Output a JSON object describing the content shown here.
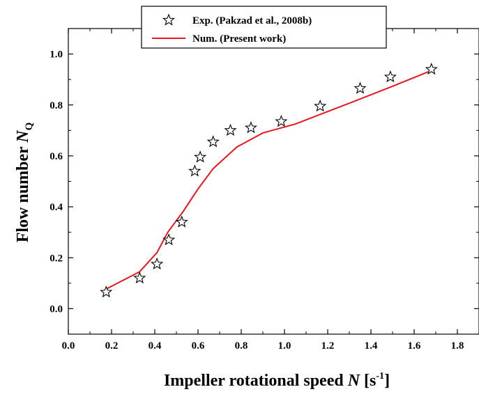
{
  "chart_data": {
    "type": "scatter",
    "xlabel": {
      "prefix": "Impeller rotational speed ",
      "var": "N",
      "unit_open": " [s",
      "unit_sup": "-1",
      "unit_close": "]"
    },
    "ylabel": {
      "prefix": "Flow number ",
      "var": "N",
      "sub": "Q"
    },
    "xlim": [
      0.0,
      1.9
    ],
    "ylim": [
      -0.1,
      1.1
    ],
    "x_ticks": [
      "0.0",
      "0.2",
      "0.4",
      "0.6",
      "0.8",
      "1.0",
      "1.2",
      "1.4",
      "1.6",
      "1.8"
    ],
    "y_ticks": [
      "0.0",
      "0.2",
      "0.4",
      "0.6",
      "0.8",
      "1.0"
    ],
    "x_tick_values": [
      0.0,
      0.2,
      0.4,
      0.6,
      0.8,
      1.0,
      1.2,
      1.4,
      1.6,
      1.8
    ],
    "y_tick_values": [
      0.0,
      0.2,
      0.4,
      0.6,
      0.8,
      1.0
    ],
    "legend_position": "top-center",
    "series": [
      {
        "name": "Exp. (Pakzad et al., 2008b)",
        "kind": "scatter",
        "marker": "star",
        "color": "#000000",
        "x": [
          0.175,
          0.33,
          0.41,
          0.465,
          0.525,
          0.585,
          0.61,
          0.67,
          0.75,
          0.845,
          0.985,
          1.165,
          1.35,
          1.49,
          1.68
        ],
        "y": [
          0.065,
          0.12,
          0.175,
          0.27,
          0.34,
          0.54,
          0.595,
          0.655,
          0.7,
          0.71,
          0.735,
          0.795,
          0.865,
          0.91,
          0.94
        ]
      },
      {
        "name": "Num. (Present work)",
        "kind": "line",
        "color": "#e8141e",
        "x": [
          0.17,
          0.33,
          0.41,
          0.46,
          0.53,
          0.6,
          0.67,
          0.78,
          0.9,
          1.05,
          1.31,
          1.49,
          1.68
        ],
        "y": [
          0.075,
          0.145,
          0.22,
          0.3,
          0.38,
          0.47,
          0.55,
          0.635,
          0.69,
          0.725,
          0.81,
          0.87,
          0.935
        ]
      }
    ]
  }
}
